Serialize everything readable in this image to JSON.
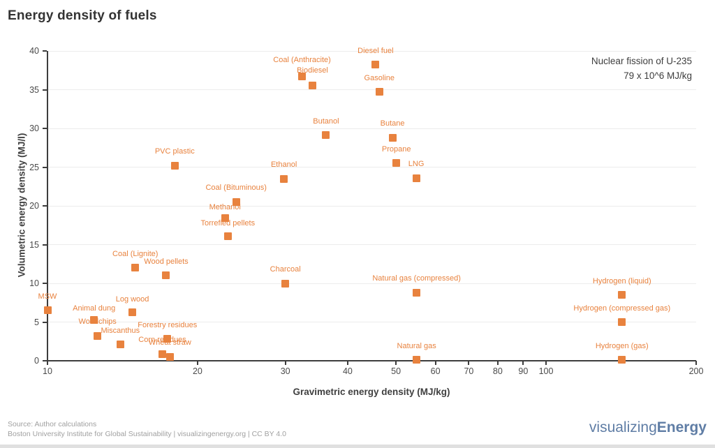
{
  "title": "Energy density of fuels",
  "annotation": {
    "line1": "Nuclear fission of U-235",
    "line2": "79 x 10^6 MJ/kg"
  },
  "footer": {
    "source": "Source: Author calculations",
    "attribution": "Boston University Institute for Global Sustainability | visualizingenergy.org | CC BY 4.0"
  },
  "logo": {
    "normal": "visualizing",
    "bold": "Energy"
  },
  "colors": {
    "accent_orange": "#E8823E",
    "logo_blue": "#5F7DA5",
    "axis_dark": "#3C3C3C",
    "grid_gray": "#ECECEC",
    "footer_gray": "#A0A0A0"
  },
  "chart_data": {
    "type": "scatter",
    "title": "Energy density of fuels",
    "xlabel": "Gravimetric energy density (MJ/kg)",
    "ylabel": "Volumetric energy density (MJ/l)",
    "x_scale": "log",
    "y_scale": "linear",
    "xlim": [
      10,
      200
    ],
    "ylim": [
      0,
      40
    ],
    "x_ticks": [
      10,
      20,
      30,
      40,
      50,
      60,
      70,
      80,
      90,
      100,
      200
    ],
    "y_ticks": [
      0,
      5,
      10,
      15,
      20,
      25,
      30,
      35,
      40
    ],
    "grid": "horizontal",
    "legend": "none",
    "marker": "square",
    "points": [
      {
        "label": "MSW",
        "x": 10,
        "y": 6.5
      },
      {
        "label": "Animal dung",
        "x": 12.4,
        "y": 5.3,
        "label_dy": 4
      },
      {
        "label": "Woodchips",
        "x": 12.6,
        "y": 3.2
      },
      {
        "label": "Miscanthus",
        "x": 14,
        "y": 2.1
      },
      {
        "label": "Log wood",
        "x": 14.8,
        "y": 6.3,
        "label_dy": 2
      },
      {
        "label": "Coal (Lignite)",
        "x": 15,
        "y": 12
      },
      {
        "label": "Wood pellets",
        "x": 17.3,
        "y": 11
      },
      {
        "label": "Corn residues",
        "x": 17,
        "y": 0.9
      },
      {
        "label": "Forestry residues",
        "x": 17.4,
        "y": 2.8
      },
      {
        "label": "Wheat straw",
        "x": 17.6,
        "y": 0.5
      },
      {
        "label": "PVC plastic",
        "x": 18,
        "y": 25.2
      },
      {
        "label": "Methanol",
        "x": 22.7,
        "y": 18.4,
        "label_dy": 4
      },
      {
        "label": "Torrefied pellets",
        "x": 23,
        "y": 16.1,
        "label_dy": 2
      },
      {
        "label": "Coal (Bituminous)",
        "x": 23.9,
        "y": 20.5
      },
      {
        "label": "Ethanol",
        "x": 29.8,
        "y": 23.5
      },
      {
        "label": "Charcoal",
        "x": 30,
        "y": 10
      },
      {
        "label": "Coal (Anthracite)",
        "x": 32.4,
        "y": 36.7,
        "label_dy": -4
      },
      {
        "label": "Biodiesel",
        "x": 34,
        "y": 35.5,
        "label_dy": -2
      },
      {
        "label": "Butanol",
        "x": 36.2,
        "y": 29.1
      },
      {
        "label": "Diesel fuel",
        "x": 45.5,
        "y": 38.2
      },
      {
        "label": "Gasoline",
        "x": 46.3,
        "y": 34.7
      },
      {
        "label": "Butane",
        "x": 49.2,
        "y": 28.8
      },
      {
        "label": "Propane",
        "x": 50.1,
        "y": 25.5
      },
      {
        "label": "LNG",
        "x": 54.9,
        "y": 23.6
      },
      {
        "label": "Natural gas (compressed)",
        "x": 55,
        "y": 8.8
      },
      {
        "label": "Natural gas",
        "x": 55,
        "y": 0.1
      },
      {
        "label": "Hydrogen (liquid)",
        "x": 142,
        "y": 8.5
      },
      {
        "label": "Hydrogen (compressed gas)",
        "x": 142,
        "y": 5
      },
      {
        "label": "Hydrogen (gas)",
        "x": 142,
        "y": 0.1
      }
    ]
  }
}
